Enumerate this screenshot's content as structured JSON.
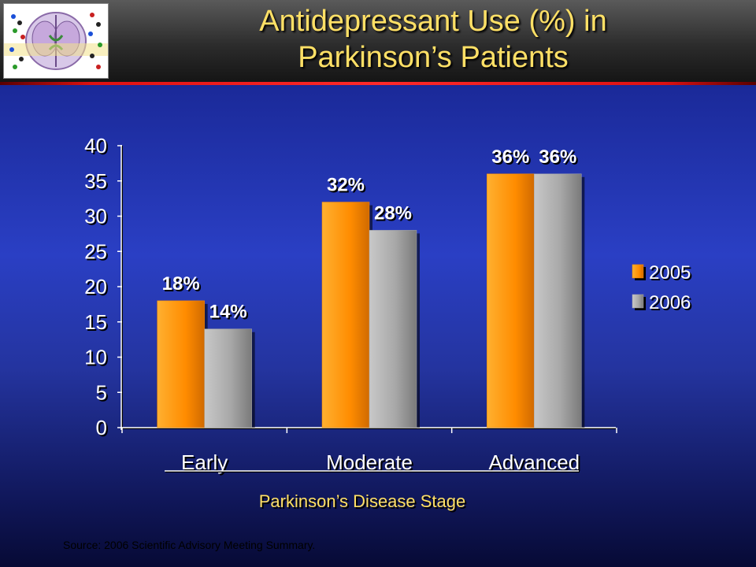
{
  "header": {
    "title_line1": "Antidepressant Use (%) in",
    "title_line2": "Parkinson’s Patients",
    "logo_icon": "brain-scan-icon"
  },
  "colors": {
    "accent_title": "#ffe066",
    "series_2005": "#ff8c00",
    "series_2006": "#a8a8a8",
    "header_rule": "#ff2a2a"
  },
  "chart_data": {
    "type": "bar",
    "categories": [
      "Early",
      "Moderate",
      "Advanced"
    ],
    "series": [
      {
        "name": "2005",
        "values": [
          18,
          32,
          36
        ],
        "labels": [
          "18%",
          "32%",
          "36%"
        ]
      },
      {
        "name": "2006",
        "values": [
          14,
          28,
          36
        ],
        "labels": [
          "14%",
          "28%",
          "36%"
        ]
      }
    ],
    "xlabel": "Parkinson’s Disease Stage",
    "ylabel": "",
    "ylim": [
      0,
      40
    ],
    "yticks": [
      "0",
      "5",
      "10",
      "15",
      "20",
      "25",
      "30",
      "35",
      "40"
    ],
    "grid": false,
    "legend_position": "right"
  },
  "footer": {
    "source": "Source: 2006 Scientific Advisory Meeting Summary."
  }
}
